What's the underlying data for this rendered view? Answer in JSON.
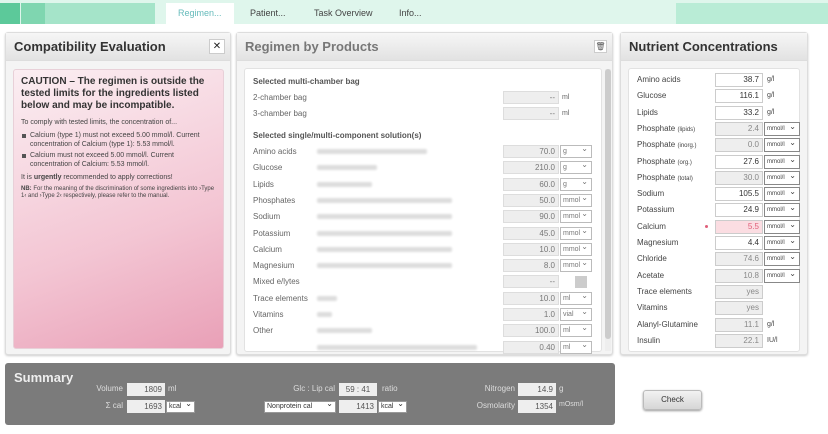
{
  "tabs": [
    {
      "label": "Regimen..."
    },
    {
      "label": "Patient..."
    },
    {
      "label": "Task Overview"
    },
    {
      "label": "Info..."
    }
  ],
  "compat": {
    "title": "Compatibility Evaluation",
    "close": "✕",
    "heading": "CAUTION – The regimen is outside the tested limits for the ingredients listed below and may be incompatible.",
    "intro": "To comply with tested limits, the concentration of...",
    "items": [
      "Calcium (type 1) must not exceed 5.00 mmol/l. Current concentration of Calcium (type 1): 5.53 mmol/l.",
      "Calcium must not exceed 5.00 mmol/l. Current concentration of Calcium: 5.53 mmol/l."
    ],
    "urge_pre": "It is ",
    "urge_bold": "urgently",
    "urge_post": " recommended to apply corrections!",
    "nb_label": "NB:",
    "nb": " For the meaning of the discrimination of some ingredients into ›Type 1‹ and ›Type 2‹ respectively, please refer to the manual."
  },
  "regimen": {
    "title": "Regimen by Products",
    "trash": "🗑",
    "bag_section": "Selected multi-chamber bag",
    "bags": [
      {
        "label": "2-chamber bag",
        "value": "--",
        "unit": "ml"
      },
      {
        "label": "3-chamber bag",
        "value": "--",
        "unit": "ml"
      }
    ],
    "sol_section": "Selected single/multi-component solution(s)",
    "rows": [
      {
        "label": "Amino acids",
        "value": "70.0",
        "unit": "g"
      },
      {
        "label": "Glucose",
        "value": "210.0",
        "unit": "g"
      },
      {
        "label": "Lipids",
        "value": "60.0",
        "unit": "g"
      },
      {
        "label": "Phosphates",
        "value": "50.0",
        "unit": "mmol"
      },
      {
        "label": "Sodium",
        "value": "90.0",
        "unit": "mmol"
      },
      {
        "label": "Potassium",
        "value": "45.0",
        "unit": "mmol"
      },
      {
        "label": "Calcium",
        "value": "10.0",
        "unit": "mmol"
      },
      {
        "label": "Magnesium",
        "value": "8.0",
        "unit": "mmol"
      },
      {
        "label": "Mixed e/lytes",
        "value": "--",
        "unit": ""
      },
      {
        "label": "Trace elements",
        "value": "10.0",
        "unit": "ml"
      },
      {
        "label": "Vitamins",
        "value": "1.0",
        "unit": "vial"
      },
      {
        "label": "Other",
        "value": "100.0",
        "unit": "ml"
      },
      {
        "label": "",
        "value": "0.40",
        "unit": "ml"
      }
    ]
  },
  "nutrients": {
    "title": "Nutrient Concentrations",
    "rows": [
      {
        "label": "Amino acids",
        "sub": "",
        "value": "38.7",
        "unit": "g/l",
        "type": "fixed"
      },
      {
        "label": "Glucose",
        "sub": "",
        "value": "116.1",
        "unit": "g/l",
        "type": "fixed"
      },
      {
        "label": "Lipids",
        "sub": "",
        "value": "33.2",
        "unit": "g/l",
        "type": "fixed"
      },
      {
        "label": "Phosphate ",
        "sub": "(lipids)",
        "value": "2.4",
        "unit": "mmol/l",
        "type": "sel",
        "grey": true
      },
      {
        "label": "Phosphate ",
        "sub": "(inorg.)",
        "value": "0.0",
        "unit": "mmol/l",
        "type": "sel",
        "grey": true
      },
      {
        "label": "Phosphate ",
        "sub": "(org.)",
        "value": "27.6",
        "unit": "mmol/l",
        "type": "sel"
      },
      {
        "label": "Phosphate ",
        "sub": "(total)",
        "value": "30.0",
        "unit": "mmol/l",
        "type": "sel",
        "grey": true
      },
      {
        "label": "Sodium",
        "sub": "",
        "value": "105.5",
        "unit": "mmol/l",
        "type": "sel"
      },
      {
        "label": "Potassium",
        "sub": "",
        "value": "24.9",
        "unit": "mmol/l",
        "type": "sel"
      },
      {
        "label": "Calcium",
        "sub": "",
        "value": "5.5",
        "unit": "mmol/l",
        "type": "sel",
        "warn": true
      },
      {
        "label": "Magnesium",
        "sub": "",
        "value": "4.4",
        "unit": "mmol/l",
        "type": "sel"
      },
      {
        "label": "Chloride",
        "sub": "",
        "value": "74.6",
        "unit": "mmol/l",
        "type": "sel",
        "grey": true
      },
      {
        "label": "Acetate",
        "sub": "",
        "value": "10.8",
        "unit": "mmol/l",
        "type": "sel",
        "grey": true
      },
      {
        "label": "Trace elements",
        "sub": "",
        "value": "yes",
        "unit": "",
        "type": "fixed",
        "grey": true
      },
      {
        "label": "Vitamins",
        "sub": "",
        "value": "yes",
        "unit": "",
        "type": "fixed",
        "grey": true
      },
      {
        "label": "Alanyl-Glutamine",
        "sub": "",
        "value": "11.1",
        "unit": "g/l",
        "type": "fixed",
        "grey": true
      },
      {
        "label": "Insulin",
        "sub": "",
        "value": "22.1",
        "unit": "IU/l",
        "type": "fixed",
        "grey": true
      }
    ],
    "warn_color": "#e0607a"
  },
  "summary": {
    "title": "Summary",
    "volume_label": "Volume",
    "volume": "1809",
    "volume_unit": "ml",
    "ecal_label": "Σ cal",
    "ecal": "1693",
    "ecal_unit": "kcal",
    "ratio_label": "Glc : Lip cal",
    "ratio_glc": "59",
    "ratio_lip": "41",
    "ratio_unit": "ratio",
    "np_select": "Nonprotein cal",
    "np": "1413",
    "np_unit": "kcal",
    "nitrogen_label": "Nitrogen",
    "nitrogen": "14.9",
    "nitrogen_unit": "g",
    "osm_label": "Osmolarity",
    "osm": "1354",
    "osm_unit": "mOsm/l"
  },
  "check_label": "Check"
}
